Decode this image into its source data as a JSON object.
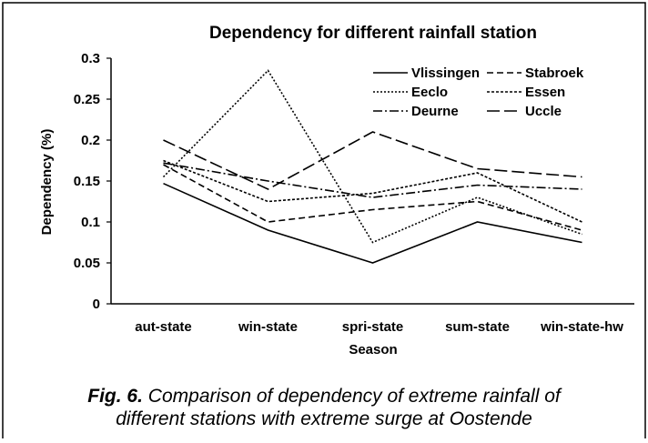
{
  "chart_data": {
    "type": "line",
    "title": "Dependency for different rainfall station",
    "x_label": "Season",
    "y_label": "Dependency (%)",
    "categories": [
      "aut-state",
      "win-state",
      "spri-state",
      "sum-state",
      "win-state-hw"
    ],
    "series": [
      {
        "name": "Vlissingen",
        "color": "#000000",
        "style": "solid",
        "values": [
          0.147,
          0.09,
          0.05,
          0.1,
          0.075
        ]
      },
      {
        "name": "Stabroek",
        "color": "#000000",
        "style": "dashed",
        "values": [
          0.17,
          0.1,
          0.115,
          0.125,
          0.09
        ]
      },
      {
        "name": "Eeclo",
        "color": "#000000",
        "style": "dotted",
        "values": [
          0.155,
          0.285,
          0.075,
          0.13,
          0.085
        ]
      },
      {
        "name": "Essen",
        "color": "#000000",
        "style": "finedash",
        "values": [
          0.175,
          0.125,
          0.135,
          0.16,
          0.1
        ]
      },
      {
        "name": "Deurne",
        "color": "#000000",
        "style": "dashdot",
        "values": [
          0.172,
          0.15,
          0.13,
          0.145,
          0.14
        ]
      },
      {
        "name": "Uccle",
        "color": "#000000",
        "style": "longdash",
        "values": [
          0.2,
          0.14,
          0.21,
          0.165,
          0.155
        ]
      }
    ],
    "ylim": [
      0,
      0.3
    ],
    "yticks": [
      0,
      0.05,
      0.1,
      0.15,
      0.2,
      0.25,
      0.3
    ],
    "grid": false,
    "legend": "top-right"
  },
  "caption": {
    "label": "Fig. 6.",
    "line1": "Comparison of dependency of extreme rainfall of",
    "line2": "different stations with extreme surge at Oostende"
  }
}
